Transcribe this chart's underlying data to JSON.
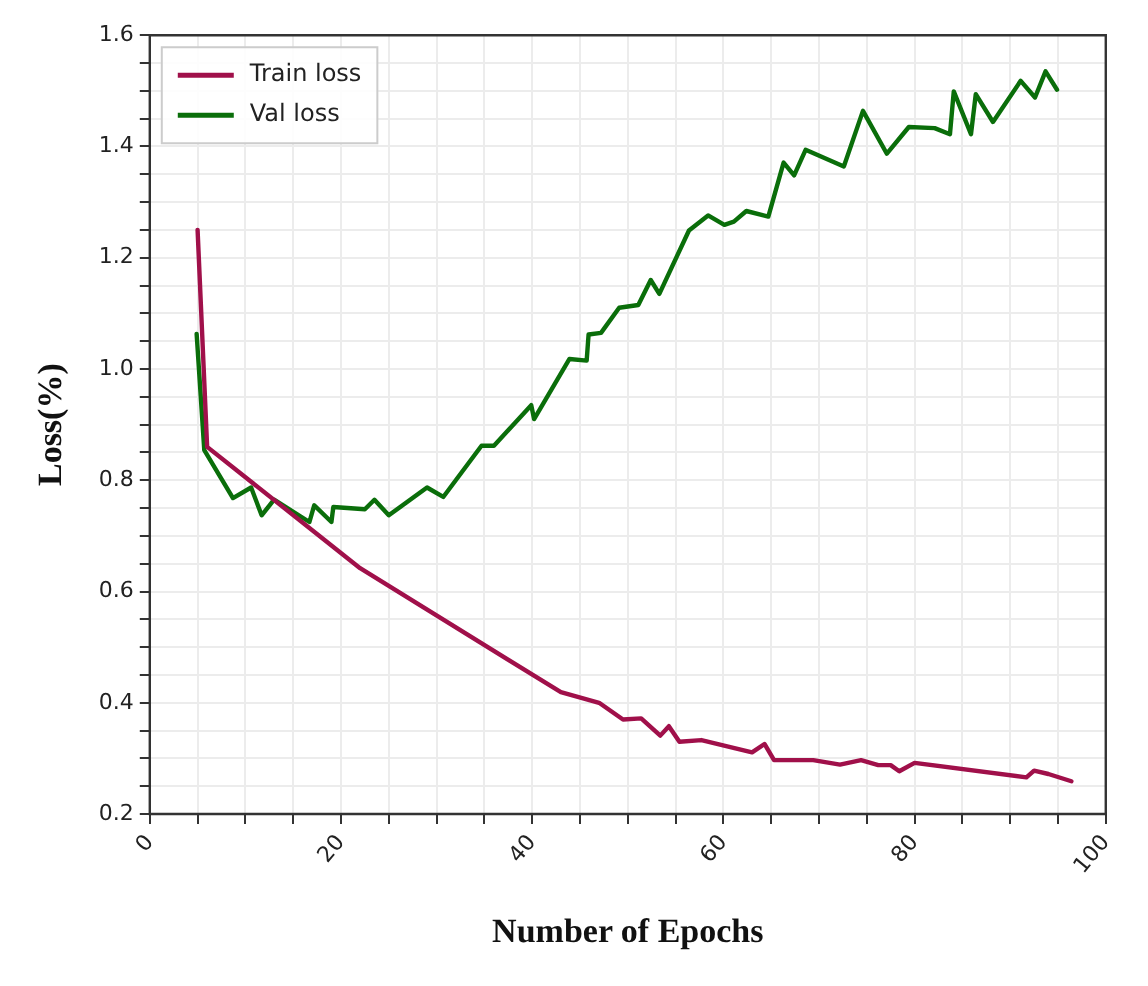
{
  "chart_data": {
    "type": "line",
    "xlabel": "Number of Epochs",
    "ylabel": "Loss(%)",
    "xlim": [
      0,
      100
    ],
    "xticks": [
      0,
      {
        "value": 5,
        "label": null
      },
      {
        "value": 10,
        "label": null
      },
      {
        "value": 15,
        "label": null
      },
      20,
      {
        "value": 25,
        "label": null
      },
      {
        "value": 30,
        "label": null
      },
      {
        "value": 35,
        "label": null
      },
      40,
      {
        "value": 45,
        "label": null
      },
      {
        "value": 50,
        "label": null
      },
      {
        "value": 55,
        "label": null
      },
      60,
      {
        "value": 65,
        "label": null
      },
      {
        "value": 70,
        "label": null
      },
      {
        "value": 75,
        "label": null
      },
      80,
      {
        "value": 85,
        "label": null
      },
      {
        "value": 90,
        "label": null
      },
      {
        "value": 95,
        "label": null
      },
      100
    ],
    "ylim": [
      0.2,
      1.6
    ],
    "yticks": [
      {
        "value": 0.2,
        "label": "0.2"
      },
      {
        "value": 0.25,
        "label": null
      },
      {
        "value": 0.3,
        "label": null
      },
      {
        "value": 0.35,
        "label": null
      },
      {
        "value": 0.4,
        "label": "0.4"
      },
      {
        "value": 0.45,
        "label": null
      },
      {
        "value": 0.5,
        "label": null
      },
      {
        "value": 0.55,
        "label": null
      },
      {
        "value": 0.6,
        "label": "0.6"
      },
      {
        "value": 0.65,
        "label": null
      },
      {
        "value": 0.7,
        "label": null
      },
      {
        "value": 0.75,
        "label": null
      },
      {
        "value": 0.8,
        "label": "0.8"
      },
      {
        "value": 0.85,
        "label": null
      },
      {
        "value": 0.9,
        "label": null
      },
      {
        "value": 0.95,
        "label": null
      },
      {
        "value": 1.0,
        "label": "1.0"
      },
      {
        "value": 1.05,
        "label": null
      },
      {
        "value": 1.1,
        "label": null
      },
      {
        "value": 1.15,
        "label": null
      },
      {
        "value": 1.2,
        "label": "1.2"
      },
      {
        "value": 1.25,
        "label": null
      },
      {
        "value": 1.3,
        "label": null
      },
      {
        "value": 1.35,
        "label": null
      },
      {
        "value": 1.4,
        "label": "1.4"
      },
      {
        "value": 1.45,
        "label": null
      },
      {
        "value": 1.5,
        "label": null
      },
      {
        "value": 1.55,
        "label": null
      },
      {
        "value": 1.6,
        "label": "1.6"
      }
    ],
    "grid": true,
    "legend": "top left",
    "marker": "none",
    "line_style": "solid",
    "series": [
      {
        "name": "Train loss",
        "color": "#a0104a",
        "x": [
          5,
          6,
          22,
          43,
          47,
          49.5,
          51.4,
          53.4,
          54.3,
          55.4,
          57.7,
          63,
          64.3,
          65.3,
          69.4,
          72.2,
          74.4,
          76.2,
          77.5,
          78.4,
          80,
          91.7,
          92.5,
          94,
          96.4
        ],
        "values": [
          1.25,
          0.86,
          0.642,
          0.419,
          0.4,
          0.37,
          0.372,
          0.341,
          0.358,
          0.33,
          0.333,
          0.311,
          0.326,
          0.297,
          0.297,
          0.289,
          0.297,
          0.288,
          0.288,
          0.277,
          0.292,
          0.266,
          0.278,
          0.272,
          0.259
        ]
      },
      {
        "name": "Val loss",
        "color": "#0a6e0a",
        "x": [
          4.9,
          5.7,
          8.7,
          10.6,
          11.7,
          13,
          16.7,
          17.2,
          19,
          19.2,
          22.5,
          23.5,
          25,
          29,
          30.7,
          34.7,
          36,
          39.9,
          40.2,
          43.9,
          45.7,
          45.9,
          47.2,
          49.1,
          51.1,
          52.4,
          53.3,
          56.4,
          58.4,
          60.1,
          61.1,
          62.4,
          64.7,
          66.3,
          67.4,
          68.6,
          72.6,
          74.6,
          77.1,
          79.4,
          82.1,
          83.7,
          84.1,
          85.9,
          86.4,
          88.2,
          91.1,
          92.6,
          93.7,
          94.9
        ],
        "values": [
          1.063,
          0.854,
          0.768,
          0.787,
          0.737,
          0.765,
          0.725,
          0.755,
          0.725,
          0.752,
          0.748,
          0.765,
          0.737,
          0.787,
          0.77,
          0.862,
          0.862,
          0.935,
          0.91,
          1.018,
          1.015,
          1.062,
          1.065,
          1.11,
          1.115,
          1.16,
          1.135,
          1.249,
          1.276,
          1.259,
          1.265,
          1.284,
          1.274,
          1.371,
          1.348,
          1.394,
          1.364,
          1.464,
          1.387,
          1.435,
          1.433,
          1.422,
          1.499,
          1.422,
          1.494,
          1.444,
          1.518,
          1.488,
          1.535,
          1.502
        ]
      }
    ]
  }
}
